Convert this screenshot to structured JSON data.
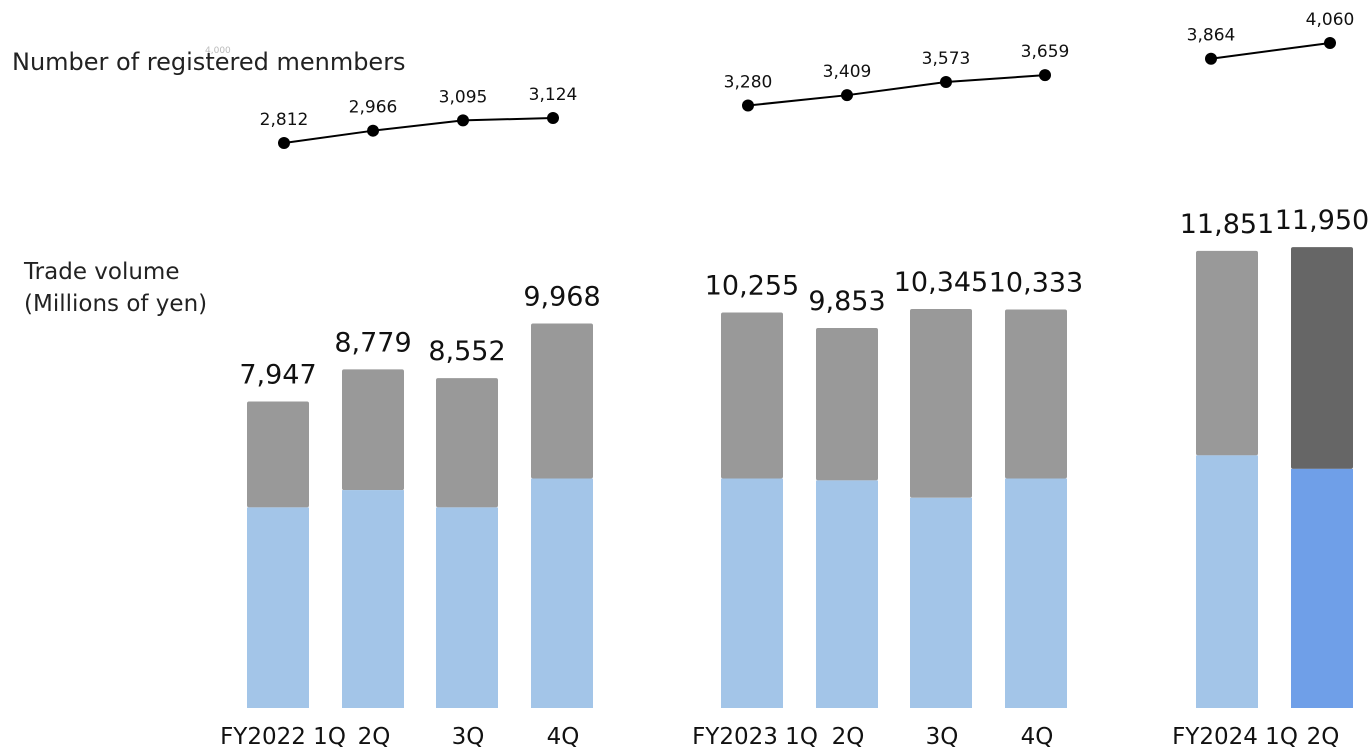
{
  "chart_data": {
    "type": "bar",
    "title": "",
    "categories": [
      "FY2022 1Q",
      "2Q",
      "3Q",
      "4Q",
      "FY2023 1Q",
      "2Q",
      "3Q",
      "4Q",
      "FY2024 1Q",
      "2Q"
    ],
    "groups": [
      {
        "name": "FY2022",
        "quarters": [
          "FY2022 1Q",
          "2Q",
          "3Q",
          "4Q"
        ]
      },
      {
        "name": "FY2023",
        "quarters": [
          "FY2023 1Q",
          "2Q",
          "3Q",
          "4Q"
        ]
      },
      {
        "name": "FY2024",
        "quarters": [
          "FY2024 1Q",
          "2Q"
        ]
      }
    ],
    "trade_volume": {
      "label_line1": "Trade volume",
      "label_line2": "(Millions of yen)",
      "values": [
        7947,
        8779,
        8552,
        9968,
        10255,
        9853,
        10345,
        10333,
        11851,
        11950
      ],
      "value_labels": [
        "7,947",
        "8,779",
        "8,552",
        "9,968",
        "10,255",
        "9,853",
        "10,345",
        "10,333",
        "11,851",
        "11,950"
      ],
      "lower_segment_values": [
        5200,
        5650,
        5200,
        5950,
        5950,
        5900,
        5450,
        5950,
        6550,
        6200
      ],
      "ylim": [
        0,
        14000
      ]
    },
    "registered_members": {
      "label": "Number of registered menmbers",
      "axis_note": "4,000",
      "values": [
        2812,
        2966,
        3095,
        3124,
        3280,
        3409,
        3573,
        3659,
        3864,
        4060
      ],
      "value_labels": [
        "2,812",
        "2,966",
        "3,095",
        "3,124",
        "3,280",
        "3,409",
        "3,573",
        "3,659",
        "3,864",
        "4,060"
      ]
    },
    "colors": {
      "upper_segment": "#999999",
      "lower_segment": "#a3c5e8",
      "latest_upper_segment": "#666666",
      "latest_lower_segment": "#6f9fe8",
      "line": "#000000",
      "text": "#111111"
    },
    "grid": false,
    "legend": "none"
  }
}
